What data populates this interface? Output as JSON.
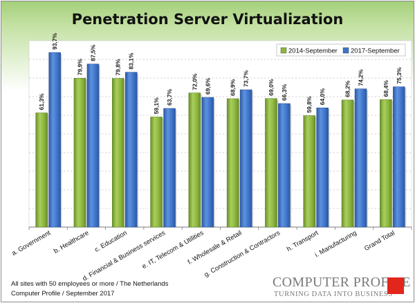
{
  "chart_data": {
    "type": "bar",
    "title": "Penetration Server Virtualization",
    "categories": [
      "a. Government",
      "b. Healthcare",
      "c. Education",
      "d. Financial & Business services",
      "e. IT, Telecom & Utilities",
      "f. Wholesale & Retail",
      "g. Construction & Contractors",
      "h. Transport",
      "i. Manufacturing",
      "Grand Total"
    ],
    "series": [
      {
        "name": "2014-September",
        "values": [
          61.3,
          79.9,
          79.8,
          59.1,
          72.0,
          68.9,
          69.0,
          59.8,
          68.2,
          68.4
        ],
        "labels": [
          "61,3%",
          "79,9%",
          "79,8%",
          "59,1%",
          "72,0%",
          "68,9%",
          "69,0%",
          "59,8%",
          "68,2%",
          "68,4%"
        ],
        "color": "#8db63f"
      },
      {
        "name": "2017-September",
        "values": [
          93.7,
          87.5,
          83.1,
          63.7,
          69.6,
          73.7,
          66.3,
          64.0,
          74.2,
          75.3
        ],
        "labels": [
          "93,7%",
          "87,5%",
          "83,1%",
          "63,7%",
          "69,6%",
          "73,7%",
          "66,3%",
          "64,0%",
          "74,2%",
          "75,3%"
        ],
        "color": "#3f74c9"
      }
    ],
    "ylim": [
      0,
      100
    ],
    "grid": true,
    "legend_position": "top-right"
  },
  "footnote": {
    "line1": "All sites with 50 employees or more / The Netherlands",
    "line2": "Computer Profile / September 2017"
  },
  "logo": {
    "name": "COMPUTER PROFILE",
    "tagline": "TURNING DATA INTO BUSINESS"
  }
}
